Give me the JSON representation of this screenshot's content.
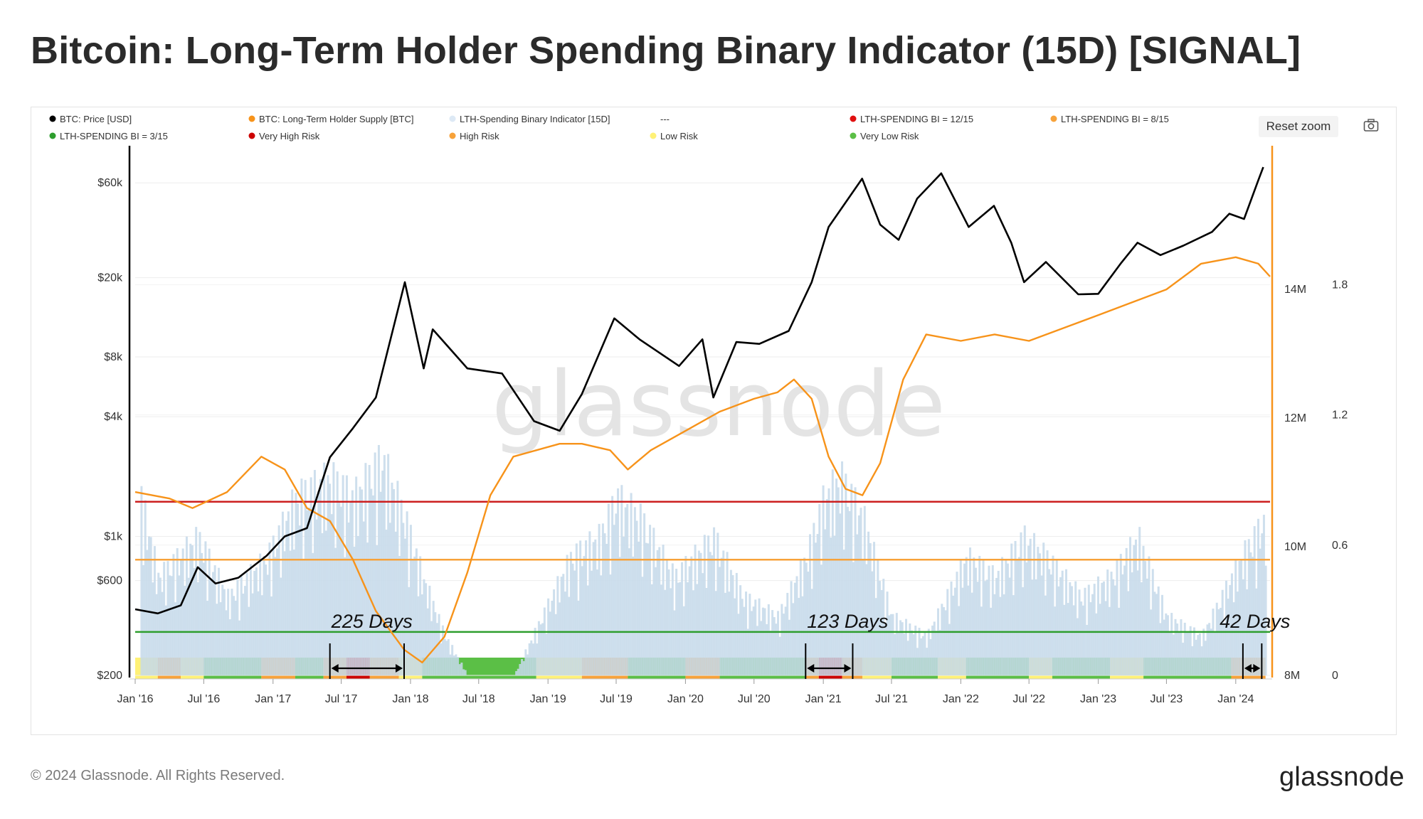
{
  "title": "Bitcoin: Long-Term Holder Spending Binary Indicator (15D) [SIGNAL]",
  "toolbar": {
    "reset_zoom": "Reset zoom",
    "camera_icon": "camera-icon"
  },
  "footer": {
    "copyright": "© 2024 Glassnode. All Rights Reserved.",
    "brand": "glassnode"
  },
  "watermark": "glassnode",
  "colors": {
    "price": "#000000",
    "supply": "#f7931a",
    "indicator": "#c6d9ea",
    "very_high": "#cc0000",
    "high": "#f7a23a",
    "low": "#fff176",
    "very_low": "#5bbf46"
  },
  "chart_data": {
    "type": "line",
    "title": "Bitcoin: Long-Term Holder Spending Binary Indicator (15D) [SIGNAL]",
    "legend": [
      {
        "label": "BTC: Price [USD]",
        "color": "#000000"
      },
      {
        "label": "BTC: Long-Term Holder Supply [BTC]",
        "color": "#f7931a"
      },
      {
        "label": "LTH-Spending Binary Indicator [15D]",
        "color": "#dde9f5"
      },
      {
        "label": "---",
        "color": ""
      },
      {
        "label": "LTH-SPENDING BI = 12/15",
        "color": "#e01010"
      },
      {
        "label": "LTH-SPENDING BI = 8/15",
        "color": "#f7a23a"
      },
      {
        "label": "LTH-SPENDING BI = 3/15",
        "color": "#2e9e2e"
      },
      {
        "label": "Very High Risk",
        "color": "#cc0000"
      },
      {
        "label": "High Risk",
        "color": "#f7a23a"
      },
      {
        "label": "Low Risk",
        "color": "#fff176"
      },
      {
        "label": "Very Low Risk",
        "color": "#5bbf46"
      }
    ],
    "x_ticks": [
      "Jan '16",
      "Jul '16",
      "Jan '17",
      "Jul '17",
      "Jan '18",
      "Jul '18",
      "Jan '19",
      "Jul '19",
      "Jan '20",
      "Jul '20",
      "Jan '21",
      "Jul '21",
      "Jan '22",
      "Jul '22",
      "Jan '23",
      "Jul '23",
      "Jan '24"
    ],
    "x_tick_dates": [
      "2016-01-01",
      "2016-07-01",
      "2017-01-01",
      "2017-07-01",
      "2018-01-01",
      "2018-07-01",
      "2019-01-01",
      "2019-07-01",
      "2020-01-01",
      "2020-07-01",
      "2021-01-01",
      "2021-07-01",
      "2022-01-01",
      "2022-07-01",
      "2023-01-01",
      "2023-07-01",
      "2024-01-01"
    ],
    "xlim": [
      "2016-01-01",
      "2024-04-01"
    ],
    "y_left": {
      "scale": "log",
      "ticks": [
        "$200",
        "$600",
        "$1k",
        "$4k",
        "$8k",
        "$20k",
        "$60k"
      ],
      "tick_values": [
        200,
        600,
        1000,
        4000,
        8000,
        20000,
        60000
      ],
      "ylim": [
        200,
        90000
      ]
    },
    "y_supply": {
      "ticks": [
        "8M",
        "10M",
        "12M",
        "14M"
      ],
      "tick_values": [
        8,
        10,
        12,
        14
      ],
      "unit": "M",
      "ylim": [
        8,
        16.2
      ]
    },
    "y_indicator": {
      "ticks": [
        "0",
        "0.6",
        "1.2",
        "1.8"
      ],
      "tick_values": [
        0,
        0.6,
        1.2,
        1.8
      ],
      "ylim": [
        0,
        2.43
      ]
    },
    "thresholds": [
      {
        "label": "LTH-SPENDING BI = 12/15",
        "value": 0.8,
        "color": "#cc1f1f"
      },
      {
        "label": "LTH-SPENDING BI = 8/15",
        "value": 0.533,
        "color": "#f7a23a"
      },
      {
        "label": "LTH-SPENDING BI = 3/15",
        "value": 0.2,
        "color": "#2e9e2e"
      }
    ],
    "series": [
      {
        "name": "BTC: Price [USD]",
        "x": [
          "2016-01-01",
          "2016-03-01",
          "2016-05-01",
          "2016-06-15",
          "2016-08-01",
          "2016-10-01",
          "2016-12-15",
          "2017-02-01",
          "2017-04-01",
          "2017-06-01",
          "2017-08-01",
          "2017-10-01",
          "2017-12-17",
          "2018-02-05",
          "2018-03-01",
          "2018-06-01",
          "2018-09-01",
          "2018-11-25",
          "2019-02-01",
          "2019-04-01",
          "2019-06-26",
          "2019-09-01",
          "2019-12-15",
          "2020-02-15",
          "2020-03-15",
          "2020-05-15",
          "2020-07-15",
          "2020-10-01",
          "2020-12-01",
          "2021-01-15",
          "2021-04-14",
          "2021-06-01",
          "2021-07-20",
          "2021-09-07",
          "2021-11-10",
          "2022-01-22",
          "2022-03-30",
          "2022-05-15",
          "2022-06-18",
          "2022-08-15",
          "2022-11-09",
          "2023-01-01",
          "2023-03-01",
          "2023-04-15",
          "2023-06-15",
          "2023-08-15",
          "2023-10-30",
          "2023-12-15",
          "2024-01-23",
          "2024-03-01",
          "2024-03-14"
        ],
        "values": [
          430,
          410,
          450,
          700,
          580,
          620,
          800,
          1000,
          1100,
          2500,
          3500,
          5000,
          19000,
          7000,
          11000,
          7000,
          6600,
          3800,
          3400,
          5200,
          12500,
          9800,
          7200,
          9800,
          5000,
          9500,
          9300,
          10800,
          19000,
          36000,
          63000,
          37000,
          31000,
          50000,
          67000,
          36000,
          46000,
          30000,
          19000,
          24000,
          16500,
          16600,
          23500,
          30000,
          26000,
          29000,
          34000,
          42000,
          39500,
          62000,
          72000
        ]
      },
      {
        "name": "BTC: Long-Term Holder Supply [BTC]",
        "unit": "M BTC",
        "x": [
          "2016-01-01",
          "2016-04-01",
          "2016-06-01",
          "2016-09-01",
          "2016-12-01",
          "2017-02-01",
          "2017-04-01",
          "2017-06-01",
          "2017-08-01",
          "2017-10-01",
          "2017-12-15",
          "2018-02-01",
          "2018-04-01",
          "2018-06-01",
          "2018-08-01",
          "2018-10-01",
          "2018-12-01",
          "2019-02-01",
          "2019-04-01",
          "2019-06-15",
          "2019-08-01",
          "2019-10-01",
          "2020-01-01",
          "2020-04-01",
          "2020-07-01",
          "2020-09-01",
          "2020-10-15",
          "2020-12-01",
          "2021-01-15",
          "2021-03-01",
          "2021-04-15",
          "2021-06-01",
          "2021-08-01",
          "2021-10-01",
          "2022-01-01",
          "2022-04-01",
          "2022-07-01",
          "2022-10-01",
          "2023-01-01",
          "2023-04-01",
          "2023-07-01",
          "2023-10-01",
          "2024-01-01",
          "2024-03-01",
          "2024-04-01"
        ],
        "values": [
          10.85,
          10.75,
          10.6,
          10.85,
          11.4,
          11.2,
          10.6,
          10.4,
          9.8,
          9.0,
          8.4,
          8.2,
          8.6,
          9.6,
          10.8,
          11.4,
          11.5,
          11.6,
          11.6,
          11.5,
          11.2,
          11.5,
          11.8,
          12.1,
          12.3,
          12.4,
          12.6,
          12.3,
          11.4,
          10.9,
          10.8,
          11.3,
          12.6,
          13.3,
          13.2,
          13.3,
          13.2,
          13.4,
          13.6,
          13.8,
          14.0,
          14.4,
          14.5,
          14.4,
          14.2
        ]
      },
      {
        "name": "LTH-Spending Binary Indicator [15D]",
        "x": [
          "2016-01-15",
          "2016-03-01",
          "2016-06-15",
          "2016-09-01",
          "2016-12-15",
          "2017-03-01",
          "2017-06-01",
          "2017-08-01",
          "2017-10-15",
          "2017-12-15",
          "2018-02-01",
          "2018-04-01",
          "2018-06-01",
          "2018-10-01",
          "2018-12-15",
          "2019-03-01",
          "2019-05-15",
          "2019-07-01",
          "2019-09-01",
          "2019-12-01",
          "2020-03-15",
          "2020-06-01",
          "2020-09-01",
          "2020-11-15",
          "2021-01-01",
          "2021-02-15",
          "2021-04-15",
          "2021-07-01",
          "2021-10-01",
          "2022-01-15",
          "2022-04-01",
          "2022-06-15",
          "2022-08-15",
          "2022-11-15",
          "2023-02-01",
          "2023-04-15",
          "2023-07-01",
          "2023-10-01",
          "2024-01-15",
          "2024-03-20"
        ],
        "values": [
          0.9,
          0.5,
          0.7,
          0.4,
          0.6,
          0.9,
          1.0,
          0.9,
          1.1,
          0.8,
          0.5,
          0.2,
          0.0,
          0.0,
          0.3,
          0.6,
          0.7,
          0.9,
          0.8,
          0.5,
          0.7,
          0.4,
          0.3,
          0.6,
          0.9,
          1.0,
          0.8,
          0.3,
          0.2,
          0.6,
          0.5,
          0.7,
          0.6,
          0.4,
          0.5,
          0.7,
          0.3,
          0.2,
          0.6,
          0.8
        ]
      }
    ],
    "risk_band": [
      {
        "start": "2016-01-01",
        "end": "2016-03-01",
        "risk": "Low Risk"
      },
      {
        "start": "2016-03-01",
        "end": "2016-05-01",
        "risk": "High Risk"
      },
      {
        "start": "2016-05-01",
        "end": "2016-07-01",
        "risk": "Low Risk"
      },
      {
        "start": "2016-07-01",
        "end": "2016-12-01",
        "risk": "Very Low Risk"
      },
      {
        "start": "2016-12-01",
        "end": "2017-03-01",
        "risk": "High Risk"
      },
      {
        "start": "2017-03-01",
        "end": "2017-05-15",
        "risk": "Very Low Risk"
      },
      {
        "start": "2017-05-15",
        "end": "2017-07-15",
        "risk": "High Risk"
      },
      {
        "start": "2017-07-15",
        "end": "2017-09-15",
        "risk": "Very High Risk"
      },
      {
        "start": "2017-09-15",
        "end": "2017-12-01",
        "risk": "High Risk"
      },
      {
        "start": "2017-12-01",
        "end": "2018-02-01",
        "risk": "Low Risk"
      },
      {
        "start": "2018-02-01",
        "end": "2018-12-01",
        "risk": "Very Low Risk"
      },
      {
        "start": "2018-12-01",
        "end": "2019-04-01",
        "risk": "Low Risk"
      },
      {
        "start": "2019-04-01",
        "end": "2019-08-01",
        "risk": "High Risk"
      },
      {
        "start": "2019-08-01",
        "end": "2020-01-01",
        "risk": "Very Low Risk"
      },
      {
        "start": "2020-01-01",
        "end": "2020-04-01",
        "risk": "High Risk"
      },
      {
        "start": "2020-04-01",
        "end": "2020-11-15",
        "risk": "Very Low Risk"
      },
      {
        "start": "2020-11-15",
        "end": "2020-12-20",
        "risk": "High Risk"
      },
      {
        "start": "2020-12-20",
        "end": "2021-02-20",
        "risk": "Very High Risk"
      },
      {
        "start": "2021-02-20",
        "end": "2021-04-15",
        "risk": "High Risk"
      },
      {
        "start": "2021-04-15",
        "end": "2021-07-01",
        "risk": "Low Risk"
      },
      {
        "start": "2021-07-01",
        "end": "2021-11-01",
        "risk": "Very Low Risk"
      },
      {
        "start": "2021-11-01",
        "end": "2022-01-15",
        "risk": "Low Risk"
      },
      {
        "start": "2022-01-15",
        "end": "2022-07-01",
        "risk": "Very Low Risk"
      },
      {
        "start": "2022-07-01",
        "end": "2022-09-01",
        "risk": "Low Risk"
      },
      {
        "start": "2022-09-01",
        "end": "2023-02-01",
        "risk": "Very Low Risk"
      },
      {
        "start": "2023-02-01",
        "end": "2023-05-01",
        "risk": "Low Risk"
      },
      {
        "start": "2023-05-01",
        "end": "2023-12-20",
        "risk": "Very Low Risk"
      },
      {
        "start": "2023-12-20",
        "end": "2024-03-20",
        "risk": "High Risk"
      }
    ],
    "annotations": [
      {
        "text": "225 Days",
        "start": "2017-06-01",
        "end": "2017-12-15"
      },
      {
        "text": "123 Days",
        "start": "2020-11-15",
        "end": "2021-03-20"
      },
      {
        "text": "42 Days",
        "start": "2024-01-20",
        "end": "2024-03-10"
      }
    ],
    "grid": true,
    "legend_position": "top"
  }
}
